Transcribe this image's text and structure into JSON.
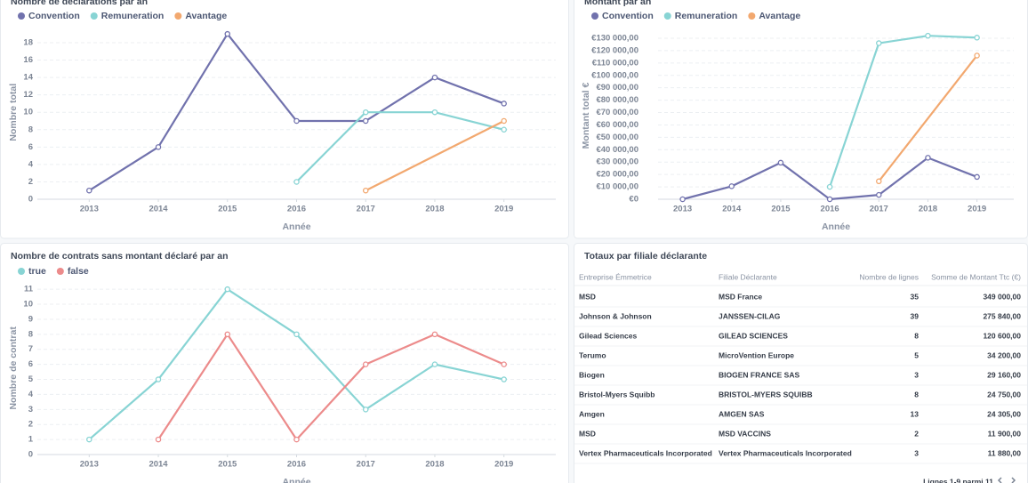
{
  "chart_data": [
    {
      "type": "line",
      "title": "Nombre de déclarations par an",
      "x_label": "Année",
      "y_label": "Nombre total",
      "xlim": [
        2012.25,
        2019.75
      ],
      "xticks": [
        2013,
        2014,
        2015,
        2016,
        2017,
        2018,
        2019
      ],
      "ylim": [
        0,
        20
      ],
      "yticks": [
        0,
        2,
        4,
        6,
        8,
        10,
        12,
        14,
        16,
        18
      ],
      "grid": true,
      "legend": "top-left",
      "series": [
        {
          "name": "Convention",
          "color": "#7172ad",
          "x": [
            2013,
            2014,
            2015,
            2016,
            2017,
            2018,
            2019
          ],
          "values": [
            1,
            6,
            19,
            9,
            9,
            14,
            11
          ]
        },
        {
          "name": "Remuneration",
          "color": "#88d4d4",
          "x": [
            2016,
            2017,
            2018,
            2019
          ],
          "values": [
            2,
            10,
            10,
            8
          ]
        },
        {
          "name": "Avantage",
          "color": "#f2a86f",
          "x": [
            2017,
            2019
          ],
          "values": [
            1,
            9
          ]
        }
      ]
    },
    {
      "type": "line",
      "title": "Montant par an",
      "x_label": "Année",
      "y_label": "Montant total €",
      "xlim": [
        2012.5,
        2019.75
      ],
      "xticks": [
        2013,
        2014,
        2015,
        2016,
        2017,
        2018,
        2019
      ],
      "ylim": [
        0,
        135000
      ],
      "yticks": [
        {
          "value": 0,
          "label": "€0"
        },
        {
          "value": 10000,
          "label": "€10 000,00"
        },
        {
          "value": 20000,
          "label": "€20 000,00"
        },
        {
          "value": 30000,
          "label": "€30 000,00"
        },
        {
          "value": 40000,
          "label": "€40 000,00"
        },
        {
          "value": 50000,
          "label": "€50 000,00"
        },
        {
          "value": 60000,
          "label": "€60 000,00"
        },
        {
          "value": 70000,
          "label": "€70 000,00"
        },
        {
          "value": 80000,
          "label": "€80 000,00"
        },
        {
          "value": 90000,
          "label": "€90 000,00"
        },
        {
          "value": 100000,
          "label": "€100 000,00"
        },
        {
          "value": 110000,
          "label": "€110 000,00"
        },
        {
          "value": 120000,
          "label": "€120 000,00"
        },
        {
          "value": 130000,
          "label": "€130 000,00"
        }
      ],
      "grid": true,
      "legend": "top-left",
      "series": [
        {
          "name": "Convention",
          "color": "#7172ad",
          "x": [
            2013,
            2014,
            2015,
            2016,
            2017,
            2018,
            2019
          ],
          "values": [
            0,
            10500,
            29500,
            0,
            3500,
            33500,
            18000
          ]
        },
        {
          "name": "Remuneration",
          "color": "#88d4d4",
          "x": [
            2016,
            2017,
            2018,
            2019
          ],
          "values": [
            10000,
            126000,
            132000,
            130500
          ]
        },
        {
          "name": "Avantage",
          "color": "#f2a86f",
          "x": [
            2017,
            2019
          ],
          "values": [
            14500,
            116000
          ]
        }
      ]
    },
    {
      "type": "line",
      "title": "Nombre de contrats sans montant déclaré par an",
      "x_label": "Année",
      "y_label": "Nombre de contrat",
      "xlim": [
        2012.25,
        2019.75
      ],
      "xticks": [
        2013,
        2014,
        2015,
        2016,
        2017,
        2018,
        2019
      ],
      "ylim": [
        0,
        11.5
      ],
      "yticks": [
        0,
        1,
        2,
        3,
        4,
        5,
        6,
        7,
        8,
        9,
        10,
        11
      ],
      "grid": true,
      "legend": "top-left",
      "series": [
        {
          "name": "true",
          "color": "#88d4d4",
          "x": [
            2013,
            2014,
            2015,
            2016,
            2017,
            2018,
            2019
          ],
          "values": [
            1,
            5,
            11,
            8,
            3,
            6,
            5
          ]
        },
        {
          "name": "false",
          "color": "#ec8b8b",
          "x": [
            2014,
            2015,
            2016,
            2017,
            2018,
            2019
          ],
          "values": [
            1,
            8,
            1,
            6,
            8,
            6
          ]
        }
      ]
    }
  ],
  "table": {
    "title": "Totaux par filiale déclarante",
    "columns": [
      "Entreprise Émmetrice",
      "Filiale Déclarante",
      "Nombre de lignes",
      "Somme de Montant Ttc (€)"
    ],
    "rows": [
      [
        "MSD",
        "MSD France",
        35,
        "349 000,00"
      ],
      [
        "Johnson & Johnson",
        "JANSSEN-CILAG",
        39,
        "275 840,00"
      ],
      [
        "Gilead Sciences",
        "GILEAD SCIENCES",
        8,
        "120 600,00"
      ],
      [
        "Terumo",
        "MicroVention Europe",
        5,
        "34 200,00"
      ],
      [
        "Biogen",
        "BIOGEN FRANCE SAS",
        3,
        "29 160,00"
      ],
      [
        "Bristol-Myers Squibb",
        "BRISTOL-MYERS SQUIBB",
        8,
        "24 750,00"
      ],
      [
        "Amgen",
        "AMGEN SAS",
        13,
        "24 305,00"
      ],
      [
        "MSD",
        "MSD VACCINS",
        2,
        "11 900,00"
      ],
      [
        "Vertex Pharmaceuticals Incorporated",
        "Vertex Pharmaceuticals Incorporated",
        3,
        "11 880,00"
      ]
    ],
    "footer": "Lignes 1-9 parmi 11"
  }
}
